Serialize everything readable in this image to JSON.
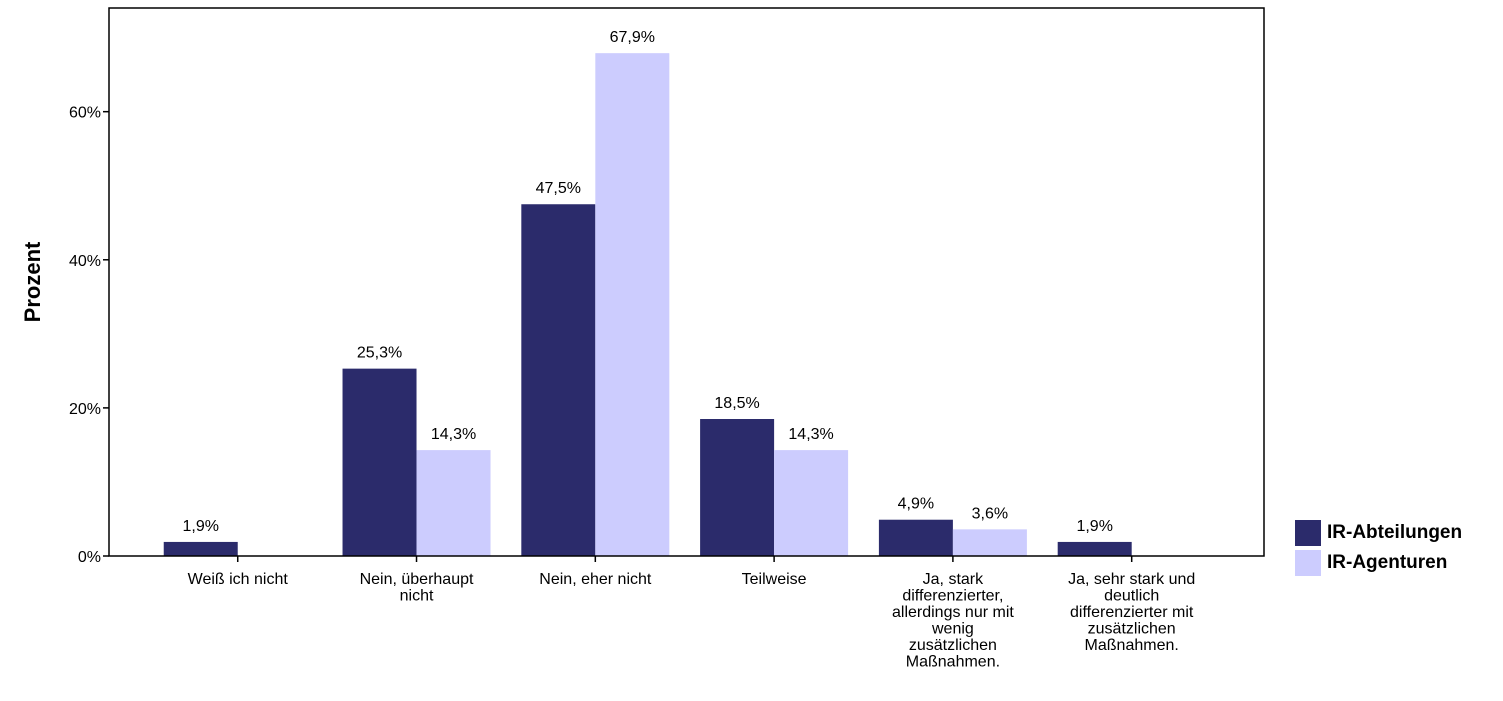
{
  "chart_data": {
    "type": "bar",
    "ylabel": "Prozent",
    "xlabel": "",
    "ylim": [
      0,
      74
    ],
    "yticks": [
      0,
      20,
      40,
      60
    ],
    "ytick_labels": [
      "0%",
      "20%",
      "40%",
      "60%"
    ],
    "categories": [
      [
        "Weiß ich nicht"
      ],
      [
        "Nein, überhaupt",
        "nicht"
      ],
      [
        "Nein, eher nicht"
      ],
      [
        "Teilweise"
      ],
      [
        "Ja, stark",
        "differenzierter,",
        "allerdings nur mit",
        "wenig",
        "zusätzlichen",
        "Maßnahmen."
      ],
      [
        "Ja, sehr stark und",
        "deutlich",
        "differenzierter mit",
        "zusätzlichen",
        "Maßnahmen."
      ]
    ],
    "series": [
      {
        "name": "IR-Abteilungen",
        "color": "#2b2b6b",
        "values": [
          1.9,
          25.3,
          47.5,
          18.5,
          4.9,
          1.9
        ],
        "labels": [
          "1,9%",
          "25,3%",
          "47,5%",
          "18,5%",
          "4,9%",
          "1,9%"
        ]
      },
      {
        "name": "IR-Agenturen",
        "color": "#ccccfe",
        "values": [
          0,
          14.3,
          67.9,
          14.3,
          3.6,
          0
        ],
        "labels": [
          "",
          "14,3%",
          "67,9%",
          "14,3%",
          "3,6%",
          ""
        ]
      }
    ],
    "legend_position": "right",
    "grid": false
  }
}
